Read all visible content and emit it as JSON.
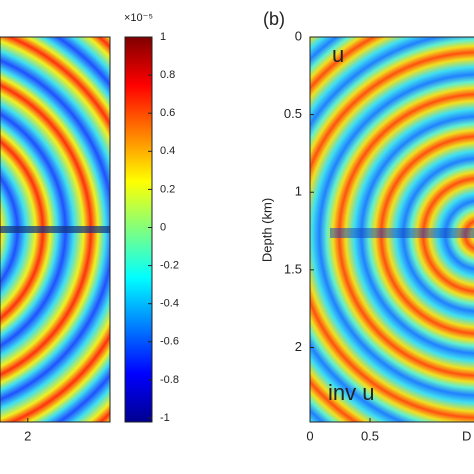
{
  "chart_data": [
    {
      "type": "heatmap",
      "xlim": [
        1.77,
        2.68
      ],
      "xticks": [
        2
      ]
    },
    {
      "type": "colorbar",
      "scale_label": "×10⁻⁵",
      "clim": [
        -1,
        1
      ],
      "ticks": [
        -1,
        -0.8,
        -0.6,
        -0.4,
        -0.2,
        0,
        0.2,
        0.4,
        0.6,
        0.8,
        1
      ]
    },
    {
      "type": "heatmap",
      "panel_label": "(b)",
      "annotations": [
        "u",
        "inv u"
      ],
      "ylabel": "Depth (km)",
      "xlabel": "D",
      "xlim": [
        0,
        1.37
      ],
      "ylim": [
        0,
        2.48
      ],
      "xticks": [
        0,
        0.5
      ],
      "yticks": [
        0,
        0.5,
        1,
        1.5,
        2
      ]
    }
  ]
}
